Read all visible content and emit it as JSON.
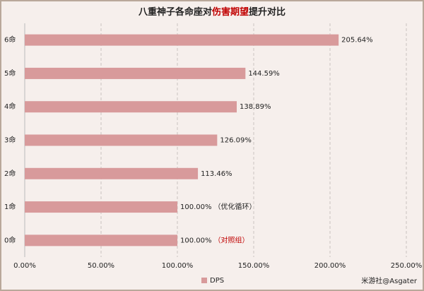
{
  "chart_data": {
    "type": "bar",
    "orientation": "horizontal",
    "title_parts": [
      "八重神子各命座对",
      "伤害期望",
      "提升对比"
    ],
    "title_colors": [
      "#222222",
      "#c00000",
      "#222222"
    ],
    "categories": [
      "0命",
      "1命",
      "2命",
      "3命",
      "4命",
      "5命",
      "6命"
    ],
    "series": [
      {
        "name": "DPS",
        "color": "#d89a9b",
        "values": [
          100,
          100,
          113.46,
          126.09,
          138.89,
          144.59,
          205.64
        ],
        "value_labels": [
          "100.00%",
          "100.00%",
          "113.46%",
          "126.09%",
          "138.89%",
          "144.59%",
          "205.64%"
        ]
      }
    ],
    "value_notes": [
      "（对照组）",
      "（优化循环）",
      null,
      null,
      null,
      null,
      null
    ],
    "value_note_colors": [
      "#c00000",
      "#222222",
      null,
      null,
      null,
      null,
      null
    ],
    "xlim": [
      0,
      250
    ],
    "xticks": [
      {
        "value": 0,
        "label": "0.00%"
      },
      {
        "value": 50,
        "label": "50.00%"
      },
      {
        "value": 100,
        "label": "100.00%"
      },
      {
        "value": 150,
        "label": "150.00%"
      },
      {
        "value": 200,
        "label": "200.00%"
      },
      {
        "value": 250,
        "label": "250.00%"
      }
    ],
    "grid": true,
    "legend": "bottom",
    "watermark": "米游社@Asgater"
  }
}
